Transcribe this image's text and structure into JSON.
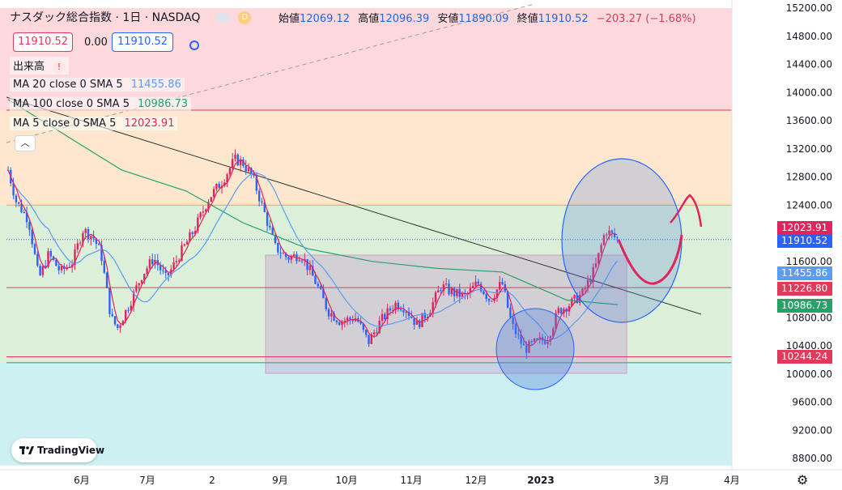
{
  "header": {
    "title": "ナスダック総合指数 · 1日 · NASDAQ",
    "badge": "D",
    "ohlc": [
      {
        "label": "始値",
        "value": "12069.12"
      },
      {
        "label": "高値",
        "value": "12096.39"
      },
      {
        "label": "安値",
        "value": "11890.09"
      },
      {
        "label": "終値",
        "value": "11910.52"
      }
    ],
    "change": "−203.27 (−1.68%)",
    "sell_price": "11910.52",
    "spread": "0.00",
    "buy_price": "11910.52"
  },
  "indicators": [
    {
      "label": "出来高",
      "value": "!",
      "color": "#e03a3a"
    },
    {
      "label": "MA 20 close 0 SMA 5",
      "value": "11455.86",
      "color": "#5b9cf6"
    },
    {
      "label": "MA 100 close 0 SMA 5",
      "value": "10986.73",
      "color": "#26a269"
    },
    {
      "label": "MA 5 close 0 SMA 5",
      "value": "12023.91",
      "color": "#e0245e"
    }
  ],
  "logo_text": "TradingView",
  "collapse_icon": "chevron-up-icon",
  "settings_icon": "gear-icon",
  "chart_data": {
    "type": "candlestick",
    "y_axis_ticks": [
      "15200.00",
      "14800.00",
      "14400.00",
      "14000.00",
      "13600.00",
      "13200.00",
      "12800.00",
      "12400.00",
      "12000.00",
      "11600.00",
      "11200.00",
      "10800.00",
      "10400.00",
      "10000.00",
      "9600.00",
      "9200.00",
      "8800.00"
    ],
    "y_range": [
      8700,
      15200
    ],
    "x_axis_ticks": [
      "6月",
      "7月",
      "2",
      "9月",
      "10月",
      "11月",
      "12月",
      "2023",
      "3月",
      "4月"
    ],
    "price_tags": [
      {
        "value": "12023.91",
        "color": "#e0245e"
      },
      {
        "value": "11910.52",
        "color": "#2962ff"
      },
      {
        "value": "11455.86",
        "color": "#5b9cf6"
      },
      {
        "value": "11226.80",
        "color": "#e03a5a"
      },
      {
        "value": "10986.73",
        "color": "#26a269"
      },
      {
        "value": "10244.24",
        "color": "#e03a5a"
      }
    ],
    "horizontal_lines": [
      13750,
      12400,
      11226.8,
      10244.24,
      10160
    ],
    "zones": [
      {
        "from": 13750,
        "to": 15200,
        "color": "#fdd8dc"
      },
      {
        "from": 12400,
        "to": 13750,
        "color": "#fde8cf"
      },
      {
        "from": 10160,
        "to": 12400,
        "color": "#dcefd8"
      },
      {
        "from": 8700,
        "to": 10160,
        "color": "#cdf1f2"
      }
    ],
    "colors": {
      "up": "#e0245e",
      "down": "#2962ff"
    }
  }
}
